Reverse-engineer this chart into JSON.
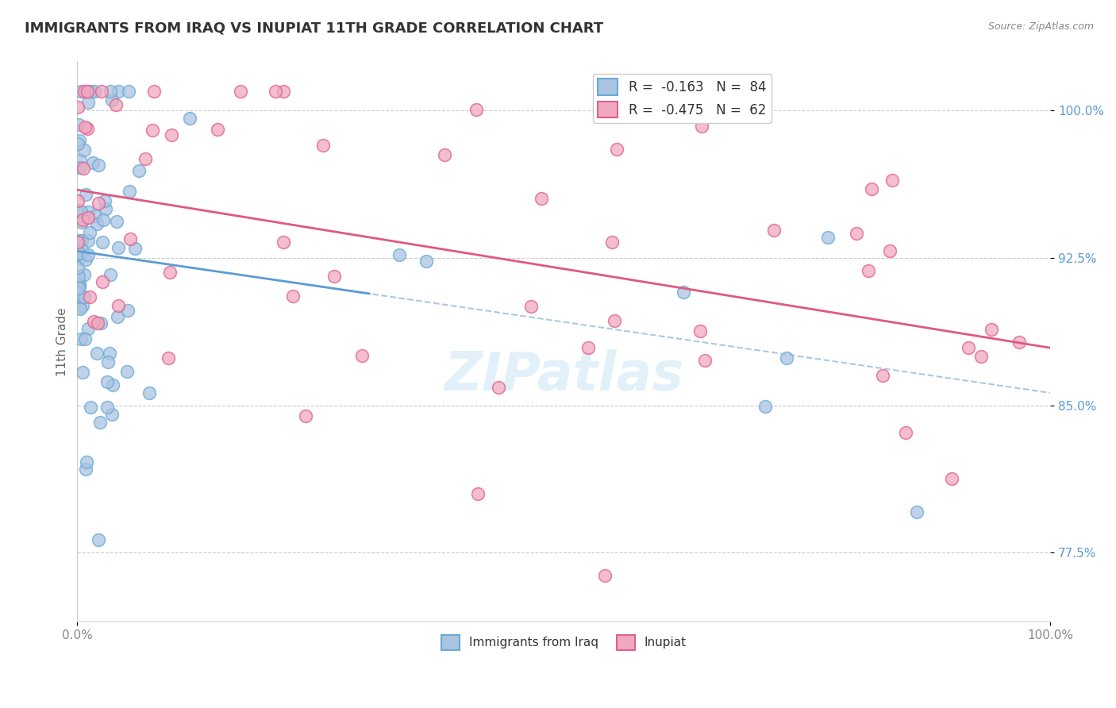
{
  "title": "IMMIGRANTS FROM IRAQ VS INUPIAT 11TH GRADE CORRELATION CHART",
  "source_text": "Source: ZipAtlas.com",
  "ylabel": "11th Grade",
  "xlim": [
    0.0,
    1.0
  ],
  "ylim": [
    0.74,
    1.025
  ],
  "yticks": [
    0.775,
    0.85,
    0.925,
    1.0
  ],
  "ytick_labels": [
    "77.5%",
    "85.0%",
    "92.5%",
    "100.0%"
  ],
  "xticks": [
    0.0,
    1.0
  ],
  "xtick_labels": [
    "0.0%",
    "100.0%"
  ],
  "legend_r1": "R = ",
  "legend_rv1": "-0.163",
  "legend_n1": "N = ",
  "legend_nv1": "84",
  "legend_r2": "R = ",
  "legend_rv2": "-0.475",
  "legend_n2": "N = ",
  "legend_nv2": "62",
  "color_iraq": "#aac4e2",
  "color_inupiat": "#f0a8be",
  "color_iraq_edge": "#6aaad4",
  "color_inupiat_edge": "#e06090",
  "color_iraq_line": "#5b9bd5",
  "color_inupiat_line": "#e05880",
  "color_dashed": "#99bbdd",
  "watermark_color": "#d0e8f5",
  "background_color": "#ffffff",
  "grid_color": "#cccccc"
}
